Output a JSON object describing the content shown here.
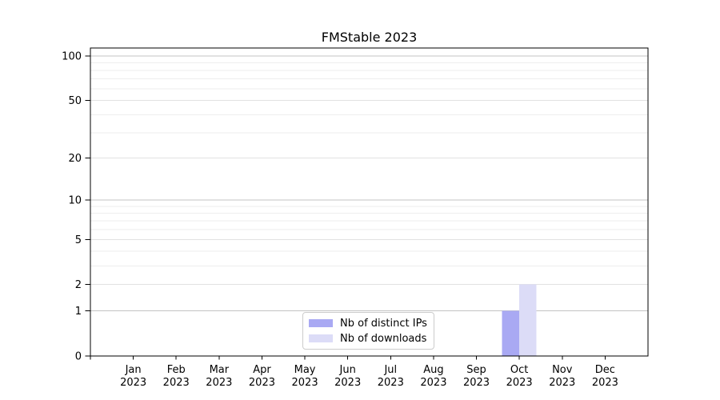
{
  "chart_data": {
    "type": "bar",
    "title": "FMStable 2023",
    "categories": [
      {
        "month": "Jan",
        "year": "2023"
      },
      {
        "month": "Feb",
        "year": "2023"
      },
      {
        "month": "Mar",
        "year": "2023"
      },
      {
        "month": "Apr",
        "year": "2023"
      },
      {
        "month": "May",
        "year": "2023"
      },
      {
        "month": "Jun",
        "year": "2023"
      },
      {
        "month": "Jul",
        "year": "2023"
      },
      {
        "month": "Aug",
        "year": "2023"
      },
      {
        "month": "Sep",
        "year": "2023"
      },
      {
        "month": "Oct",
        "year": "2023"
      },
      {
        "month": "Nov",
        "year": "2023"
      },
      {
        "month": "Dec",
        "year": "2023"
      }
    ],
    "series": [
      {
        "name": "Nb of distinct IPs",
        "color": "#a9a9f3",
        "values": [
          0,
          0,
          0,
          0,
          0,
          0,
          0,
          0,
          0,
          1,
          0,
          0
        ]
      },
      {
        "name": "Nb of downloads",
        "color": "#dcdcf7",
        "values": [
          0,
          0,
          0,
          0,
          0,
          0,
          0,
          0,
          0,
          2,
          0,
          0
        ]
      }
    ],
    "y_axis": {
      "scale": "log1p",
      "ylim": [
        0,
        115
      ],
      "ticks": [
        0,
        1,
        2,
        5,
        10,
        20,
        50,
        100
      ],
      "minor_gridlines": [
        3,
        4,
        6,
        7,
        8,
        9,
        30,
        40,
        60,
        70,
        80,
        90
      ],
      "emphasized_gridlines": [
        1,
        10,
        100
      ]
    },
    "grid": "horizontal",
    "legend_position": "lower-center",
    "colors": {
      "frame": "#000000",
      "gridline_major_emphasized": "#c3c3c3",
      "gridline_major": "#e2e2e2",
      "gridline_minor": "#eeeeee"
    }
  }
}
